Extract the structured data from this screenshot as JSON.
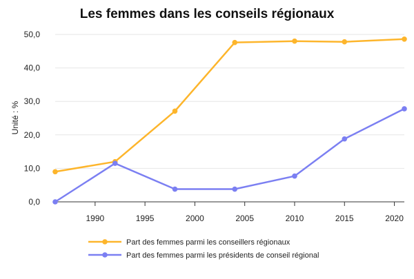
{
  "chart_data": {
    "type": "line",
    "title": "Les femmes dans les conseils régionaux",
    "ylabel": "Unité : %",
    "xlabel": "",
    "xlim": [
      1986,
      2021
    ],
    "ylim": [
      0,
      50
    ],
    "x_ticks": [
      1990,
      1995,
      2000,
      2005,
      2010,
      2015,
      2020
    ],
    "y_ticks": [
      "0,0",
      "10,0",
      "20,0",
      "30,0",
      "40,0",
      "50,0"
    ],
    "grid": true,
    "legend_position": "bottom",
    "series": [
      {
        "name": "Part des femmes parmi les conseillers régionaux",
        "color": "#FDB52B",
        "x": [
          1986,
          1992,
          1998,
          2004,
          2010,
          2015,
          2021
        ],
        "values": [
          9.0,
          12.0,
          27.1,
          47.6,
          48.0,
          47.8,
          48.6
        ]
      },
      {
        "name": "Part des femmes parmi les présidents de conseil régional",
        "color": "#7B7FF2",
        "x": [
          1986,
          1992,
          1998,
          2004,
          2010,
          2015,
          2021
        ],
        "values": [
          0.0,
          11.5,
          3.8,
          3.8,
          7.7,
          18.8,
          27.8
        ]
      }
    ]
  }
}
